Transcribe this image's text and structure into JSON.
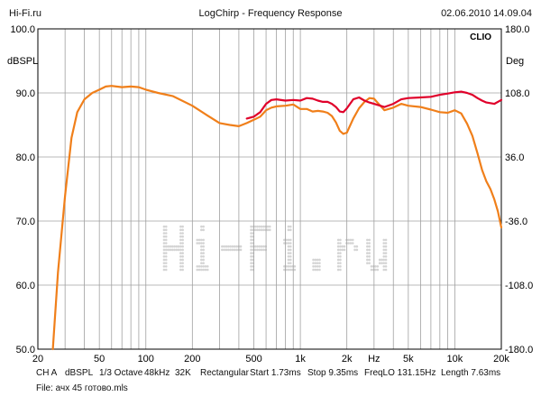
{
  "header": {
    "site": "Hi-Fi.ru",
    "title": "LogChirp - Frequency Response",
    "datetime": "02.06.2010 14.09.04"
  },
  "brand": "CLIO",
  "watermark": "Hi-Fi.ru",
  "footer": {
    "line1": [
      "CH A",
      "dBSPL",
      "1/3 Octave",
      "48kHz",
      "32K",
      "Rectangular",
      "Start 1.73ms",
      "Stop 9.35ms",
      "FreqLO 131.15Hz",
      "Length 7.63ms"
    ],
    "line2": "File: ачх 45 готово.mls"
  },
  "chart_data": {
    "type": "line",
    "title": "LogChirp - Frequency Response",
    "ylabel": "dBSPL",
    "y2label": "Deg",
    "xscale": "log",
    "xlim": [
      20,
      20000
    ],
    "ylim": [
      50,
      100
    ],
    "y2lim": [
      -180,
      180
    ],
    "grid": true,
    "x_tick_labels": [
      {
        "value": 20,
        "label": "20"
      },
      {
        "value": 50,
        "label": "50"
      },
      {
        "value": 100,
        "label": "100"
      },
      {
        "value": 200,
        "label": "200"
      },
      {
        "value": 500,
        "label": "500"
      },
      {
        "value": 1000,
        "label": "1k"
      },
      {
        "value": 2000,
        "label": "2k"
      },
      {
        "value": 3000,
        "label": "Hz"
      },
      {
        "value": 5000,
        "label": "5k"
      },
      {
        "value": 10000,
        "label": "10k"
      },
      {
        "value": 20000,
        "label": "20k"
      }
    ],
    "y_tick_labels": [
      "100.0",
      "90.0",
      "80.0",
      "70.0",
      "60.0",
      "50.0"
    ],
    "y_tick_values": [
      100,
      90,
      80,
      70,
      60,
      50
    ],
    "y2_tick_labels": [
      "180.0",
      "108.0",
      "36.0",
      "-36.0",
      "-108.0",
      "-180.0"
    ],
    "y2_tick_values": [
      180,
      108,
      36,
      -36,
      -108,
      -180
    ],
    "colors": {
      "red": "#e0002a",
      "orange": "#f07f1a",
      "grid": "#a0a0a0"
    },
    "series": [
      {
        "color": "#e0002a",
        "x": [
          450,
          500,
          550,
          600,
          650,
          700,
          800,
          900,
          1000,
          1100,
          1200,
          1300,
          1400,
          1500,
          1600,
          1700,
          1800,
          1900,
          2000,
          2200,
          2400,
          2600,
          2800,
          3000,
          3500,
          4000,
          4500,
          5000,
          6000,
          7000,
          8000,
          9000,
          10000,
          11000,
          12000,
          13000,
          14000,
          15000,
          16000,
          18000,
          20000
        ],
        "y": [
          86.0,
          86.3,
          87.0,
          88.3,
          88.9,
          89.0,
          88.8,
          88.9,
          88.8,
          89.2,
          89.1,
          88.8,
          88.6,
          88.6,
          88.3,
          87.8,
          87.1,
          87.0,
          87.6,
          89.0,
          89.3,
          88.8,
          88.5,
          88.3,
          87.8,
          88.3,
          89.0,
          89.2,
          89.3,
          89.4,
          89.7,
          89.9,
          90.1,
          90.2,
          90.0,
          89.7,
          89.2,
          88.8,
          88.5,
          88.3,
          88.9
        ]
      },
      {
        "color": "#f07f1a",
        "x": [
          25,
          27,
          30,
          33,
          36,
          40,
          45,
          50,
          55,
          60,
          70,
          80,
          90,
          100,
          120,
          150,
          200,
          250,
          300,
          350,
          400,
          450,
          500,
          550,
          600,
          650,
          700,
          800,
          900,
          1000,
          1100,
          1200,
          1300,
          1400,
          1500,
          1600,
          1700,
          1800,
          1900,
          2000,
          2200,
          2400,
          2600,
          2800,
          3000,
          3500,
          4000,
          4500,
          5000,
          6000,
          7000,
          8000,
          9000,
          10000,
          11000,
          12000,
          13000,
          14000,
          15000,
          16000,
          17000,
          18000,
          19000,
          20000
        ],
        "y": [
          50.0,
          62.0,
          74.0,
          83.0,
          87.0,
          89.0,
          90.0,
          90.5,
          91.0,
          91.1,
          90.9,
          91.0,
          90.9,
          90.5,
          90.0,
          89.5,
          88.0,
          86.5,
          85.3,
          85.0,
          84.8,
          85.3,
          85.8,
          86.3,
          87.3,
          87.7,
          87.9,
          88.0,
          88.2,
          87.5,
          87.5,
          87.1,
          87.2,
          87.1,
          86.9,
          86.4,
          85.4,
          84.1,
          83.6,
          83.8,
          86.0,
          87.6,
          88.6,
          89.2,
          89.1,
          87.3,
          87.7,
          88.3,
          88.0,
          87.8,
          87.4,
          87.0,
          86.9,
          87.3,
          86.8,
          85.2,
          83.3,
          80.6,
          78.0,
          76.2,
          75.0,
          73.4,
          71.5,
          69.0
        ]
      }
    ]
  }
}
